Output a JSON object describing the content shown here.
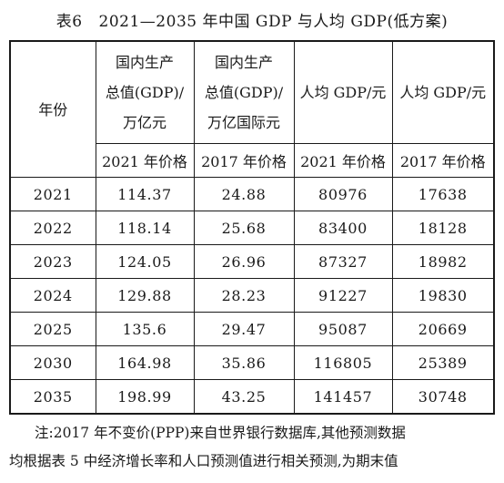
{
  "title": {
    "number": "表6",
    "text": "2021—2035 年中国 GDP 与人均 GDP(低方案)"
  },
  "table": {
    "headers": {
      "year": "年份",
      "gdp_2021": [
        "国内生产",
        "总值(GDP)/",
        "万亿元"
      ],
      "gdp_2017": [
        "国内生产",
        "总值(GDP)/",
        "万亿国际元"
      ],
      "per_capita_2021": "人均 GDP/元",
      "per_capita_2017": "人均 GDP/元"
    },
    "subheaders": [
      "2021 年价格",
      "2017 年价格",
      "2021 年价格",
      "2017 年价格"
    ],
    "rows": [
      [
        "2021",
        "114.37",
        "24.88",
        "80976",
        "17638"
      ],
      [
        "2022",
        "118.14",
        "25.68",
        "83400",
        "18128"
      ],
      [
        "2023",
        "124.05",
        "26.96",
        "87327",
        "18982"
      ],
      [
        "2024",
        "129.88",
        "28.23",
        "91227",
        "19830"
      ],
      [
        "2025",
        "135.6",
        "29.47",
        "95087",
        "20669"
      ],
      [
        "2030",
        "164.98",
        "35.86",
        "116805",
        "25389"
      ],
      [
        "2035",
        "198.99",
        "43.25",
        "141457",
        "30748"
      ]
    ]
  },
  "note": {
    "line1": "注:2017 年不变价(PPP)来自世界银行数据库,其他预测数据",
    "line2": "均根据表 5 中经济增长率和人口预测值进行相关预测,为期末值"
  }
}
